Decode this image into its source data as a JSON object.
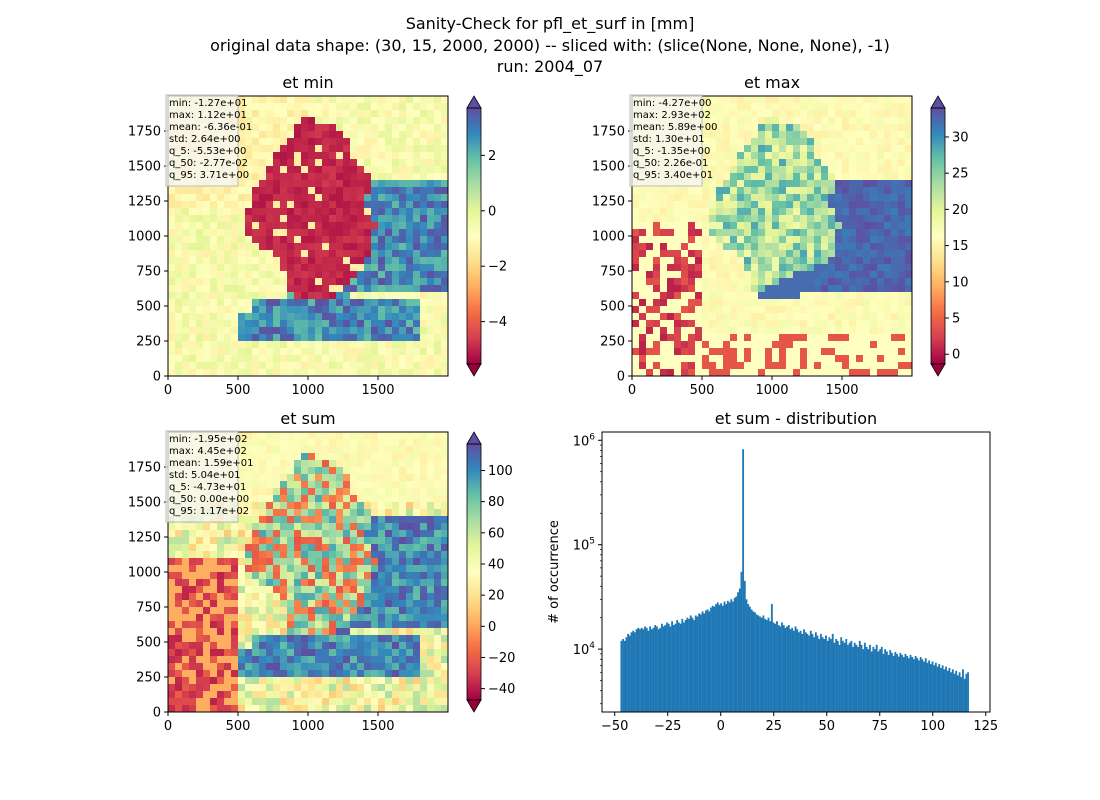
{
  "figure": {
    "title_lines": [
      "Sanity-Check for pfl_et_surf in [mm]",
      "original data shape: (30, 15, 2000, 2000) -- sliced with: (slice(None, None, None), -1)",
      "run: 2004_07"
    ]
  },
  "chart_data": [
    {
      "type": "heatmap",
      "title": "et min",
      "colormap": "Spectral",
      "x_ticks": [
        "0",
        "500",
        "1000",
        "1500"
      ],
      "y_ticks": [
        "0",
        "250",
        "500",
        "750",
        "1000",
        "1250",
        "1500",
        "1750"
      ],
      "xlim": [
        0,
        2000
      ],
      "ylim": [
        0,
        2000
      ],
      "colorbar": {
        "ticks": [
          "−4",
          "−2",
          "0",
          "2"
        ],
        "range": [
          -5.53,
          3.71
        ],
        "extend": "both"
      },
      "stats": [
        "min: -1.27e+01",
        "max: 1.12e+01",
        "mean: -6.36e-01",
        "std: 2.64e+00",
        "q_5: -5.53e+00",
        "q_50: -2.77e-02",
        "q_95: 3.71e+00"
      ]
    },
    {
      "type": "heatmap",
      "title": "et max",
      "colormap": "Spectral",
      "x_ticks": [
        "0",
        "500",
        "1000",
        "1500"
      ],
      "y_ticks": [
        "0",
        "250",
        "500",
        "750",
        "1000",
        "1250",
        "1500",
        "1750"
      ],
      "xlim": [
        0,
        2000
      ],
      "ylim": [
        0,
        2000
      ],
      "colorbar": {
        "ticks": [
          "0",
          "5",
          "10",
          "15",
          "20",
          "25",
          "30"
        ],
        "range": [
          -1.35,
          34.0
        ],
        "extend": "both"
      },
      "stats": [
        "min: -4.27e+00",
        "max: 2.93e+02",
        "mean: 5.89e+00",
        "std: 1.30e+01",
        "q_5: -1.35e+00",
        "q_50: 2.26e-01",
        "q_95: 3.40e+01"
      ]
    },
    {
      "type": "heatmap",
      "title": "et sum",
      "colormap": "Spectral",
      "x_ticks": [
        "0",
        "500",
        "1000",
        "1500"
      ],
      "y_ticks": [
        "0",
        "250",
        "500",
        "750",
        "1000",
        "1250",
        "1500",
        "1750"
      ],
      "xlim": [
        0,
        2000
      ],
      "ylim": [
        0,
        2000
      ],
      "colorbar": {
        "ticks": [
          "−40",
          "−20",
          "0",
          "20",
          "40",
          "60",
          "80",
          "100"
        ],
        "range": [
          -47.3,
          117
        ],
        "extend": "both"
      },
      "stats": [
        "min: -1.95e+02",
        "max: 4.45e+02",
        "mean: 1.59e+01",
        "std: 5.04e+01",
        "q_5: -4.73e+01",
        "q_50: 0.00e+00",
        "q_95: 1.17e+02"
      ]
    },
    {
      "type": "bar",
      "title": "et sum - distribution",
      "ylabel": "# of occurrence",
      "yscale": "log",
      "color": "#1f77b4",
      "x_ticks": [
        "−50",
        "−25",
        "0",
        "25",
        "50",
        "75",
        "100",
        "125"
      ],
      "xlim": [
        -56,
        127
      ],
      "ylim": [
        2500,
        1200000
      ],
      "y_tick_values": [
        10000,
        100000,
        1000000
      ],
      "bins": {
        "start": -47.3,
        "end": 117.0
      },
      "counts": [
        12000,
        12500,
        12000,
        13000,
        14000,
        13500,
        14500,
        15000,
        14500,
        15500,
        16000,
        15500,
        16000,
        15500,
        16500,
        16000,
        15000,
        16500,
        15500,
        16000,
        17000,
        16500,
        15500,
        16000,
        17500,
        16500,
        17000,
        18000,
        17500,
        16500,
        18500,
        17000,
        17500,
        19000,
        18000,
        17500,
        19500,
        18000,
        19000,
        20000,
        19500,
        21000,
        20000,
        19000,
        21000,
        20500,
        22000,
        21500,
        23000,
        22000,
        23500,
        24000,
        23000,
        25000,
        26000,
        25500,
        27000,
        28000,
        26500,
        27500,
        26000,
        28500,
        27000,
        29000,
        28000,
        30000,
        28500,
        31000,
        32000,
        35000,
        38000,
        55000,
        820000,
        45000,
        30000,
        27000,
        25500,
        24000,
        23000,
        22500,
        21500,
        21000,
        20500,
        20000,
        21000,
        19500,
        19000,
        20000,
        18500,
        27000,
        18000,
        17500,
        18500,
        17000,
        16500,
        18000,
        17000,
        16000,
        16500,
        17000,
        15500,
        16000,
        15000,
        16500,
        15500,
        14500,
        15000,
        14000,
        15500,
        14500,
        14000,
        13500,
        15000,
        14000,
        13000,
        14500,
        13500,
        12500,
        14000,
        13000,
        12500,
        13500,
        12000,
        13000,
        12500,
        14000,
        11500,
        12500,
        12000,
        11000,
        13000,
        12000,
        11500,
        12500,
        11000,
        11500,
        12000,
        10500,
        11500,
        11000,
        10500,
        12000,
        11000,
        10000,
        11500,
        10500,
        10000,
        11000,
        9500,
        10500,
        10000,
        11000,
        9500,
        10000,
        10500,
        9000,
        10000,
        9500,
        8800,
        9800,
        9200,
        8600,
        9400,
        9000,
        8500,
        9200,
        8800,
        8400,
        9000,
        8600,
        8200,
        8800,
        8400,
        8000,
        8600,
        8200,
        7800,
        8400,
        8000,
        7600,
        8200,
        7400,
        7800,
        7200,
        7600,
        7000,
        7400,
        6800,
        7200,
        6600,
        7000,
        6400,
        6800,
        6200,
        6600,
        6000,
        6400,
        5800,
        6200,
        5600,
        6000,
        5400,
        6400,
        5200,
        5800,
        6000
      ]
    }
  ]
}
